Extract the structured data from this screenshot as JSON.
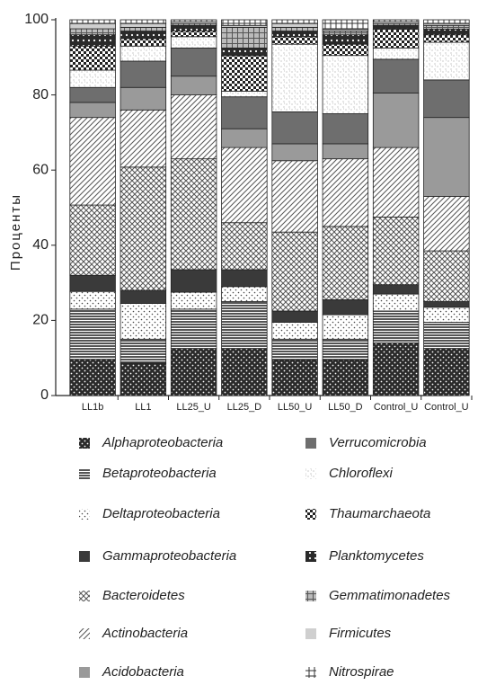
{
  "chart_data": {
    "type": "stacked_bar",
    "y_label": "Проценты",
    "categories": [
      "LL1b",
      "LL1",
      "LL25_U",
      "LL25_D",
      "LL50_U",
      "LL50_D",
      "Control_U",
      "Control_U"
    ],
    "ylim": [
      0,
      100
    ],
    "yticks": [
      0,
      20,
      40,
      60,
      80,
      100
    ],
    "grid": false,
    "legend": "bottom",
    "series": [
      {
        "name": "Alphaproteobacteria",
        "color": "#2a2a2a",
        "values": [
          9.6,
          8.6,
          12.5,
          12.5,
          9.5,
          9.5,
          14,
          12.5
        ]
      },
      {
        "name": "Betaproteobacteria",
        "color": "#2a2a2a",
        "values": [
          13.4,
          6.4,
          10.5,
          12.5,
          5.5,
          5.5,
          8.5,
          7
        ]
      },
      {
        "name": "Deltaproteobacteria",
        "color": "#444444",
        "values": [
          4.7,
          9.5,
          4.5,
          4,
          4.5,
          6.5,
          4.5,
          4
        ]
      },
      {
        "name": "Gammaproteobacteria",
        "color": "#3a3a3a",
        "values": [
          4.3,
          3.5,
          6,
          4.5,
          3,
          4,
          2.5,
          1.5
        ]
      },
      {
        "name": "Bacteroidetes",
        "color": "#555555",
        "values": [
          18.7,
          32.8,
          29.5,
          12.5,
          21,
          19.5,
          18,
          13.5
        ]
      },
      {
        "name": "Actinobacteria",
        "color": "#555555",
        "values": [
          23.3,
          15.2,
          17,
          20,
          19,
          18,
          18.5,
          14.5
        ]
      },
      {
        "name": "Acidobacteria",
        "color": "#9a9a9a",
        "values": [
          4,
          6,
          5,
          5,
          4.5,
          4,
          14.5,
          21
        ]
      },
      {
        "name": "Verrucomicrobia",
        "color": "#6e6e6e",
        "values": [
          4,
          7,
          7.5,
          8.5,
          8.5,
          8,
          9,
          10
        ]
      },
      {
        "name": "Chloroflexi",
        "color": "#777777",
        "values": [
          4.6,
          4,
          3,
          1.5,
          18,
          15.5,
          3,
          10
        ]
      },
      {
        "name": "Thaumarchaeota",
        "color": "#222222",
        "values": [
          6.4,
          2,
          1.5,
          9.5,
          2,
          3,
          5,
          2
        ]
      },
      {
        "name": "Planktomycetes",
        "color": "#2a2a2a",
        "values": [
          3,
          2,
          1.5,
          2,
          1.5,
          2.5,
          1,
          1.5
        ]
      },
      {
        "name": "Gemmatimonadetes",
        "color": "#555555",
        "values": [
          1.6,
          1,
          0.5,
          5.5,
          1,
          1,
          0.5,
          1
        ]
      },
      {
        "name": "Firmicutes",
        "color": "#cfcfcf",
        "values": [
          1.4,
          1,
          0.5,
          0.5,
          1,
          0.5,
          0.5,
          0.5
        ]
      },
      {
        "name": "Nitrospirae",
        "color": "#333333",
        "values": [
          1,
          1,
          0.5,
          1.5,
          1,
          2.5,
          0.5,
          1
        ]
      }
    ]
  }
}
